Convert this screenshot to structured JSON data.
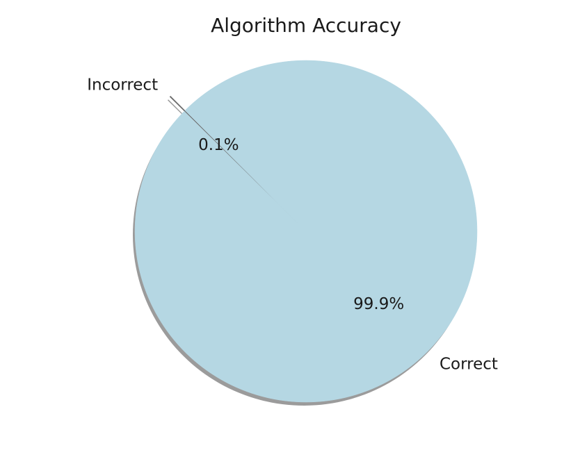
{
  "chart_data": {
    "type": "pie",
    "title": "Algorithm Accuracy",
    "slices": [
      {
        "label": "Incorrect",
        "value": 0.1,
        "pct_label": "0.1%",
        "color": "#6b6b6b",
        "exploded": true
      },
      {
        "label": "Correct",
        "value": 99.9,
        "pct_label": "99.9%",
        "color": "#b5d7e3",
        "exploded": false
      }
    ],
    "start_angle_deg": 135,
    "shadow": true,
    "legend": "none"
  }
}
